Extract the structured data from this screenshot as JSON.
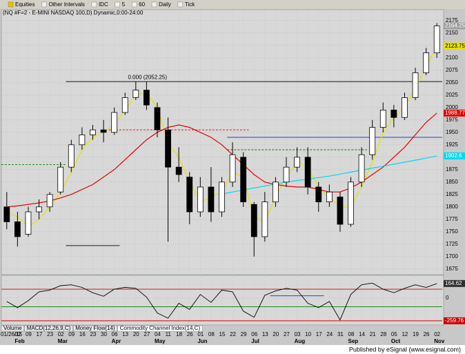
{
  "toolbar": {
    "items": [
      "Equities",
      "Other Intervals",
      "IDC",
      "5",
      "60",
      "Daily",
      "Tick"
    ]
  },
  "tabs": [
    "Volume",
    "MACD(12,26,9,C)",
    "Money Flow(14)"
  ],
  "footer": "Published by eSignal (www.esignal.com)",
  "chart_data": [
    {
      "type": "candlestick",
      "title": "(NQ #F=2 - E-MINI NASDAQ 100,D) Dynamic,0:00-24:00",
      "categories": [
        "01/26/15",
        "02",
        "09",
        "17",
        "23",
        "02",
        "09",
        "16",
        "23",
        "30",
        "06",
        "13",
        "20",
        "27",
        "04",
        "11",
        "18",
        "26",
        "01",
        "08",
        "15",
        "22",
        "29",
        "06",
        "13",
        "20",
        "27",
        "03",
        "10",
        "17",
        "24",
        "31",
        "08",
        "14",
        "21",
        "28",
        "05",
        "12",
        "19",
        "26",
        "02"
      ],
      "months": [
        null,
        "Feb",
        null,
        null,
        null,
        "Mar",
        null,
        null,
        null,
        null,
        "Apr",
        null,
        null,
        null,
        "May",
        null,
        null,
        null,
        "Jun",
        null,
        null,
        null,
        null,
        "Jul",
        null,
        null,
        null,
        "Aug",
        null,
        null,
        null,
        null,
        "Sep",
        null,
        null,
        null,
        "Oct",
        null,
        null,
        null,
        "Nov"
      ],
      "open": [
        1800,
        1770,
        1745,
        1790,
        1800,
        1830,
        1880,
        1925,
        1945,
        1955,
        1950,
        1990,
        2020,
        2035,
        2000,
        1955,
        1880,
        1860,
        1790,
        1840,
        1790,
        1850,
        1900,
        1805,
        1740,
        1810,
        1850,
        1880,
        1900,
        1840,
        1810,
        1820,
        1765,
        1850,
        1905,
        1960,
        1995,
        1980,
        2020,
        2070,
        2110
      ],
      "high": [
        1830,
        1790,
        1800,
        1815,
        1830,
        1890,
        1935,
        1960,
        1965,
        1975,
        2000,
        2030,
        2052,
        2052,
        2010,
        1980,
        1920,
        1870,
        1860,
        1880,
        1860,
        1930,
        1910,
        1810,
        1830,
        1860,
        1900,
        1920,
        1920,
        1850,
        1845,
        1830,
        1860,
        1920,
        1975,
        2010,
        2005,
        2030,
        2080,
        2120,
        2170
      ],
      "low": [
        1755,
        1720,
        1740,
        1775,
        1790,
        1825,
        1870,
        1915,
        1935,
        1930,
        1945,
        1985,
        2015,
        1995,
        1940,
        1730,
        1850,
        1765,
        1780,
        1770,
        1780,
        1840,
        1800,
        1700,
        1730,
        1800,
        1840,
        1870,
        1825,
        1790,
        1800,
        1750,
        1760,
        1840,
        1895,
        1950,
        1960,
        1975,
        2015,
        2065,
        2100
      ],
      "close": [
        1770,
        1740,
        1790,
        1800,
        1825,
        1880,
        1925,
        1945,
        1955,
        1950,
        1990,
        2020,
        2035,
        2005,
        1955,
        1880,
        1865,
        1790,
        1840,
        1790,
        1850,
        1905,
        1810,
        1740,
        1810,
        1850,
        1880,
        1900,
        1840,
        1810,
        1830,
        1765,
        1850,
        1905,
        1960,
        1995,
        1980,
        2020,
        2070,
        2110,
        2164.25
      ],
      "overlays": [
        {
          "color": "#e8e000",
          "values": [
            1790,
            1780,
            1760,
            1775,
            1800,
            1830,
            1870,
            1915,
            1940,
            1950,
            1965,
            1995,
            2025,
            2030,
            2000,
            1930,
            1900,
            1850,
            1810,
            1820,
            1830,
            1870,
            1860,
            1780,
            1770,
            1820,
            1860,
            1890,
            1880,
            1840,
            1820,
            1800,
            1800,
            1840,
            1890,
            1950,
            1980,
            2000,
            2040,
            2080,
            2123.75
          ]
        },
        {
          "color": "#e00000",
          "values": [
            1800,
            1802,
            1805,
            1808,
            1812,
            1818,
            1825,
            1835,
            1845,
            1860,
            1875,
            1895,
            1915,
            1935,
            1950,
            1960,
            1965,
            1960,
            1950,
            1940,
            1925,
            1905,
            1885,
            1865,
            1850,
            1845,
            1842,
            1840,
            1840,
            1835,
            1830,
            1830,
            1838,
            1850,
            1865,
            1880,
            1900,
            1920,
            1945,
            1970,
            1988.77
          ]
        },
        {
          "color": "#00d8f0",
          "values": [
            null,
            null,
            null,
            null,
            null,
            null,
            null,
            null,
            null,
            null,
            null,
            null,
            null,
            null,
            null,
            null,
            null,
            null,
            null,
            null,
            1826,
            1830,
            1834,
            1838,
            1842,
            1846,
            1850,
            1853,
            1856,
            1859,
            1862,
            1866,
            1870,
            1874,
            1878,
            1882,
            1886,
            1890,
            1894,
            1898,
            1902.6
          ]
        }
      ],
      "levels": [
        {
          "value": 2052.25,
          "label": "0.000 (2052.25)",
          "color": "#000000",
          "from": 6,
          "to": 40
        },
        {
          "value": 1955,
          "color": "#d00000",
          "dashed": true,
          "from": 10,
          "to": 22
        },
        {
          "value": 1940,
          "color": "#2040d0",
          "from": 21,
          "to": 40
        },
        {
          "value": 1915,
          "color": "#008000",
          "dashed": true,
          "from": 21,
          "to": 33
        },
        {
          "value": 1885,
          "color": "#008000",
          "dashed": true,
          "from": 0,
          "to": 5
        },
        {
          "value": 1722,
          "color": "#000000",
          "from": 6,
          "to": 10
        }
      ],
      "ylim": [
        1665,
        2190
      ],
      "yticks": [
        1675,
        1700,
        1725,
        1750,
        1775,
        1800,
        1825,
        1850,
        1875,
        1900,
        1925,
        1950,
        1975,
        2000,
        2025,
        2050,
        2075,
        2100,
        2125,
        2150,
        2175
      ],
      "grid": true
    },
    {
      "type": "line",
      "title": "Commodity Channel Index(14,C)",
      "color": "#000000",
      "values": [
        -40,
        -110,
        -30,
        70,
        90,
        140,
        150,
        120,
        60,
        20,
        100,
        120,
        110,
        10,
        -170,
        -230,
        -60,
        -130,
        40,
        -50,
        90,
        70,
        -150,
        -220,
        30,
        80,
        110,
        90,
        -60,
        -110,
        -40,
        -250,
        40,
        150,
        170,
        100,
        60,
        110,
        150,
        120,
        164.62
      ],
      "levels": [
        {
          "value": 100,
          "color": "#d00000",
          "from": 0,
          "to": 40
        },
        {
          "value": -100,
          "color": "#008000",
          "from": 0,
          "to": 40
        },
        {
          "value": -259.76,
          "color": "#d00000",
          "from": 0,
          "to": 40,
          "labeled": true
        },
        {
          "value": 25,
          "color": "#2040d0",
          "from": 25,
          "to": 29
        }
      ],
      "ylim": [
        -300,
        250
      ],
      "yticks": [
        0
      ]
    }
  ]
}
